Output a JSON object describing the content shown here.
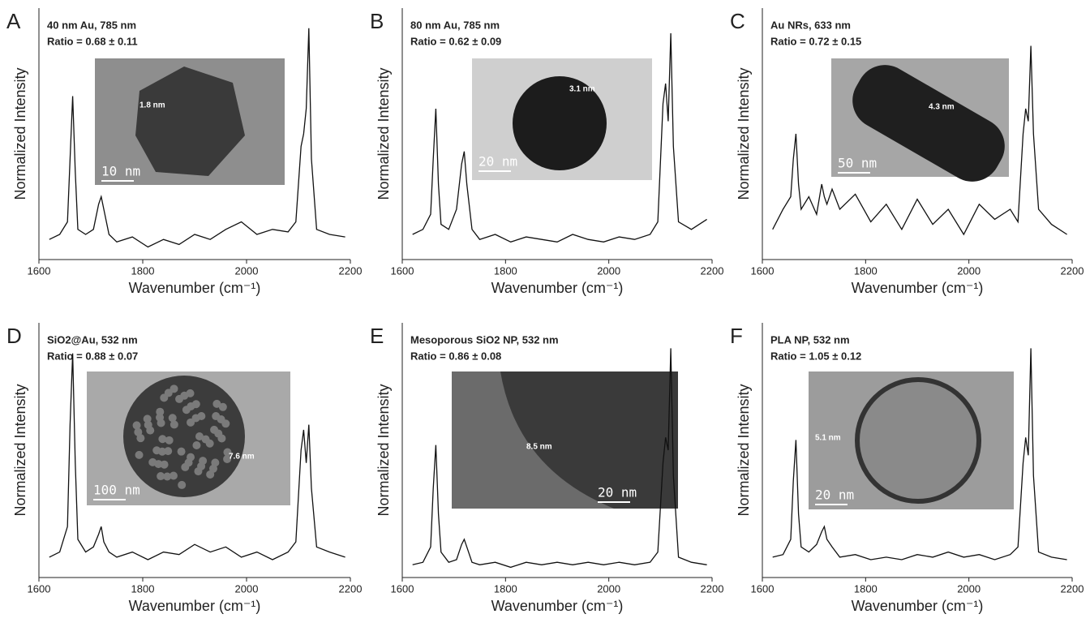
{
  "chart_data": [
    {
      "type": "line",
      "label": "A",
      "title": "40 nm Au, 785 nm",
      "subtitle": "Ratio = 0.68 ± 0.11",
      "xlabel": "Wavenumber (cm⁻¹)",
      "ylabel": "Normalized Intensity",
      "x": [
        1620,
        1640,
        1655,
        1660,
        1665,
        1670,
        1675,
        1690,
        1705,
        1715,
        1720,
        1725,
        1735,
        1750,
        1780,
        1810,
        1840,
        1870,
        1900,
        1930,
        1960,
        1990,
        2020,
        2050,
        2080,
        2095,
        2105,
        2110,
        2115,
        2120,
        2125,
        2135,
        2160,
        2190
      ],
      "series": [
        {
          "color": "#111111",
          "values": [
            0.08,
            0.1,
            0.15,
            0.4,
            0.65,
            0.35,
            0.12,
            0.1,
            0.12,
            0.22,
            0.25,
            0.2,
            0.1,
            0.07,
            0.09,
            0.05,
            0.08,
            0.06,
            0.1,
            0.08,
            0.12,
            0.15,
            0.1,
            0.12,
            0.11,
            0.15,
            0.45,
            0.5,
            0.6,
            0.92,
            0.4,
            0.12,
            0.1,
            0.09
          ]
        }
      ],
      "xlim": [
        1600,
        2200
      ],
      "xticks": [
        1600,
        1800,
        2000,
        2200
      ],
      "ylim": [
        0,
        1
      ],
      "annotations": [
        "1.8 nm",
        "10 nm"
      ]
    },
    {
      "type": "line",
      "label": "B",
      "title": "80 nm Au, 785 nm",
      "subtitle": "Ratio = 0.62 ± 0.09",
      "xlabel": "Wavenumber (cm⁻¹)",
      "ylabel": "Normalized Intensity",
      "x": [
        1620,
        1640,
        1655,
        1660,
        1665,
        1670,
        1675,
        1690,
        1705,
        1715,
        1720,
        1725,
        1735,
        1750,
        1780,
        1810,
        1840,
        1870,
        1900,
        1930,
        1960,
        1990,
        2020,
        2050,
        2080,
        2095,
        2105,
        2110,
        2115,
        2120,
        2125,
        2135,
        2160,
        2190
      ],
      "series": [
        {
          "color": "#111111",
          "values": [
            0.1,
            0.12,
            0.18,
            0.4,
            0.6,
            0.3,
            0.14,
            0.12,
            0.2,
            0.38,
            0.43,
            0.3,
            0.12,
            0.08,
            0.1,
            0.07,
            0.09,
            0.08,
            0.07,
            0.1,
            0.08,
            0.07,
            0.09,
            0.08,
            0.1,
            0.15,
            0.62,
            0.7,
            0.55,
            0.9,
            0.45,
            0.15,
            0.12,
            0.16
          ]
        }
      ],
      "xlim": [
        1600,
        2200
      ],
      "xticks": [
        1600,
        1800,
        2000,
        2200
      ],
      "ylim": [
        0,
        1
      ],
      "annotations": [
        "3.1 nm",
        "20 nm"
      ]
    },
    {
      "type": "line",
      "label": "C",
      "title": "Au NRs, 633 nm",
      "subtitle": "Ratio = 0.72 ± 0.15",
      "xlabel": "Wavenumber (cm⁻¹)",
      "ylabel": "Normalized Intensity",
      "x": [
        1620,
        1640,
        1655,
        1660,
        1665,
        1670,
        1675,
        1690,
        1705,
        1715,
        1720,
        1725,
        1735,
        1750,
        1780,
        1810,
        1840,
        1870,
        1900,
        1930,
        1960,
        1990,
        2020,
        2050,
        2080,
        2095,
        2105,
        2110,
        2115,
        2120,
        2125,
        2135,
        2160,
        2190
      ],
      "series": [
        {
          "color": "#111111",
          "values": [
            0.12,
            0.2,
            0.25,
            0.4,
            0.5,
            0.3,
            0.2,
            0.25,
            0.18,
            0.3,
            0.25,
            0.22,
            0.28,
            0.2,
            0.26,
            0.15,
            0.22,
            0.12,
            0.24,
            0.14,
            0.2,
            0.1,
            0.22,
            0.16,
            0.2,
            0.15,
            0.5,
            0.6,
            0.55,
            0.85,
            0.5,
            0.2,
            0.14,
            0.1
          ]
        }
      ],
      "xlim": [
        1600,
        2200
      ],
      "xticks": [
        1600,
        1800,
        2000,
        2200
      ],
      "ylim": [
        0,
        1
      ],
      "annotations": [
        "4.3 nm",
        "50 nm"
      ]
    },
    {
      "type": "line",
      "label": "D",
      "title": "SiO2@Au, 532 nm",
      "subtitle": "Ratio = 0.88 ± 0.07",
      "xlabel": "Wavenumber (cm⁻¹)",
      "ylabel": "Normalized Intensity",
      "x": [
        1620,
        1640,
        1655,
        1660,
        1665,
        1670,
        1675,
        1690,
        1705,
        1715,
        1720,
        1725,
        1735,
        1750,
        1780,
        1810,
        1840,
        1870,
        1900,
        1930,
        1960,
        1990,
        2020,
        2050,
        2080,
        2095,
        2105,
        2110,
        2115,
        2120,
        2125,
        2135,
        2160,
        2190
      ],
      "series": [
        {
          "color": "#111111",
          "values": [
            0.08,
            0.1,
            0.2,
            0.6,
            0.88,
            0.45,
            0.15,
            0.1,
            0.12,
            0.17,
            0.2,
            0.14,
            0.1,
            0.08,
            0.1,
            0.07,
            0.1,
            0.09,
            0.13,
            0.1,
            0.12,
            0.08,
            0.1,
            0.07,
            0.1,
            0.14,
            0.5,
            0.58,
            0.45,
            0.6,
            0.35,
            0.12,
            0.1,
            0.08
          ]
        }
      ],
      "xlim": [
        1600,
        2200
      ],
      "xticks": [
        1600,
        1800,
        2000,
        2200
      ],
      "ylim": [
        0,
        1
      ],
      "annotations": [
        "7.6 nm",
        "100 nm"
      ]
    },
    {
      "type": "line",
      "label": "E",
      "title": "Mesoporous SiO2 NP, 532 nm",
      "subtitle": "Ratio = 0.86 ± 0.08",
      "xlabel": "Wavenumber (cm⁻¹)",
      "ylabel": "Normalized Intensity",
      "x": [
        1620,
        1640,
        1655,
        1660,
        1665,
        1670,
        1675,
        1690,
        1705,
        1715,
        1720,
        1725,
        1735,
        1750,
        1780,
        1810,
        1840,
        1870,
        1900,
        1930,
        1960,
        1990,
        2020,
        2050,
        2080,
        2095,
        2105,
        2110,
        2115,
        2120,
        2125,
        2135,
        2160,
        2190
      ],
      "series": [
        {
          "color": "#111111",
          "values": [
            0.05,
            0.06,
            0.12,
            0.35,
            0.52,
            0.25,
            0.1,
            0.06,
            0.07,
            0.13,
            0.15,
            0.12,
            0.06,
            0.05,
            0.06,
            0.04,
            0.06,
            0.05,
            0.06,
            0.05,
            0.06,
            0.05,
            0.06,
            0.05,
            0.06,
            0.1,
            0.45,
            0.55,
            0.5,
            0.9,
            0.4,
            0.08,
            0.06,
            0.05
          ]
        }
      ],
      "xlim": [
        1600,
        2200
      ],
      "xticks": [
        1600,
        1800,
        2000,
        2200
      ],
      "ylim": [
        0,
        1
      ],
      "annotations": [
        "8.5 nm",
        "20 nm"
      ]
    },
    {
      "type": "line",
      "label": "F",
      "title": "PLA NP, 532 nm",
      "subtitle": "Ratio = 1.05 ± 0.12",
      "xlabel": "Wavenumber (cm⁻¹)",
      "ylabel": "Normalized Intensity",
      "x": [
        1620,
        1640,
        1655,
        1660,
        1665,
        1670,
        1675,
        1690,
        1705,
        1715,
        1720,
        1725,
        1735,
        1750,
        1780,
        1810,
        1840,
        1870,
        1900,
        1930,
        1960,
        1990,
        2020,
        2050,
        2080,
        2095,
        2105,
        2110,
        2115,
        2120,
        2125,
        2135,
        2160,
        2190
      ],
      "series": [
        {
          "color": "#111111",
          "values": [
            0.08,
            0.09,
            0.15,
            0.38,
            0.54,
            0.25,
            0.12,
            0.1,
            0.13,
            0.18,
            0.2,
            0.15,
            0.12,
            0.08,
            0.09,
            0.07,
            0.08,
            0.07,
            0.09,
            0.08,
            0.1,
            0.08,
            0.09,
            0.07,
            0.09,
            0.12,
            0.45,
            0.55,
            0.48,
            0.9,
            0.4,
            0.1,
            0.08,
            0.07
          ]
        }
      ],
      "xlim": [
        1600,
        2200
      ],
      "xticks": [
        1600,
        1800,
        2000,
        2200
      ],
      "ylim": [
        0,
        1
      ],
      "annotations": [
        "5.1 nm",
        "20 nm"
      ]
    }
  ]
}
